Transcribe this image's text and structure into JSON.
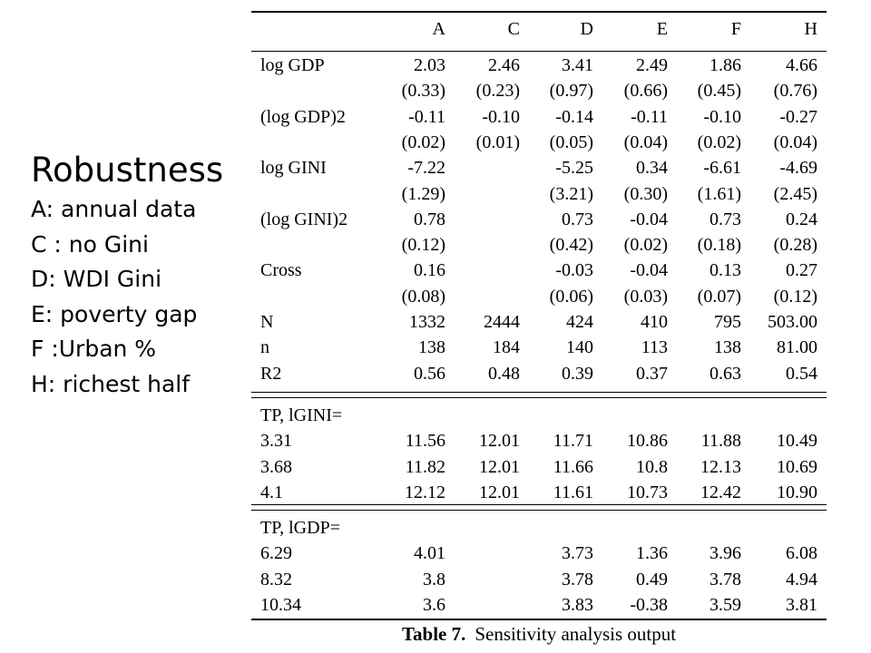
{
  "legend": {
    "title": "Robustness",
    "items": [
      "A: annual data",
      "C : no Gini",
      "D: WDI Gini",
      "E: poverty gap",
      "F :Urban %",
      "H: richest half"
    ]
  },
  "table": {
    "columns": [
      "A",
      "C",
      "D",
      "E",
      "F",
      "H"
    ],
    "sections": [
      {
        "rows": [
          {
            "label": "log GDP",
            "values": [
              "2.03",
              "2.46",
              "3.41",
              "2.49",
              "1.86",
              "4.66"
            ]
          },
          {
            "label": "",
            "values": [
              "(0.33)",
              "(0.23)",
              "(0.97)",
              "(0.66)",
              "(0.45)",
              "(0.76)"
            ]
          },
          {
            "label": "(log GDP)2",
            "values": [
              "-0.11",
              "-0.10",
              "-0.14",
              "-0.11",
              "-0.10",
              "-0.27"
            ]
          },
          {
            "label": "",
            "values": [
              "(0.02)",
              "(0.01)",
              "(0.05)",
              "(0.04)",
              "(0.02)",
              "(0.04)"
            ]
          },
          {
            "label": "log GINI",
            "values": [
              "-7.22",
              "",
              "-5.25",
              "0.34",
              "-6.61",
              "-4.69"
            ]
          },
          {
            "label": "",
            "values": [
              "(1.29)",
              "",
              "(3.21)",
              "(0.30)",
              "(1.61)",
              "(2.45)"
            ]
          },
          {
            "label": "(log GINI)2",
            "values": [
              "0.78",
              "",
              "0.73",
              "-0.04",
              "0.73",
              "0.24"
            ]
          },
          {
            "label": "",
            "values": [
              "(0.12)",
              "",
              "(0.42)",
              "(0.02)",
              "(0.18)",
              "(0.28)"
            ]
          },
          {
            "label": "Cross",
            "values": [
              "0.16",
              "",
              "-0.03",
              "-0.04",
              "0.13",
              "0.27"
            ]
          },
          {
            "label": "",
            "values": [
              "(0.08)",
              "",
              "(0.06)",
              "(0.03)",
              "(0.07)",
              "(0.12)"
            ]
          },
          {
            "label": "N",
            "values": [
              "1332",
              "2444",
              "424",
              "410",
              "795",
              "503.00"
            ]
          },
          {
            "label": "n",
            "values": [
              "138",
              "184",
              "140",
              "113",
              "138",
              "81.00"
            ]
          },
          {
            "label": "R2",
            "values": [
              "0.56",
              "0.48",
              "0.39",
              "0.37",
              "0.63",
              "0.54"
            ]
          }
        ]
      },
      {
        "rows": [
          {
            "label": "TP, lGINI=",
            "values": [
              "",
              "",
              "",
              "",
              "",
              ""
            ]
          },
          {
            "label": "3.31",
            "values": [
              "11.56",
              "12.01",
              "11.71",
              "10.86",
              "11.88",
              "10.49"
            ]
          },
          {
            "label": "3.68",
            "values": [
              "11.82",
              "12.01",
              "11.66",
              "10.8",
              "12.13",
              "10.69"
            ]
          },
          {
            "label": "4.1",
            "values": [
              "12.12",
              "12.01",
              "11.61",
              "10.73",
              "12.42",
              "10.90"
            ]
          }
        ]
      },
      {
        "rows": [
          {
            "label": "TP, lGDP=",
            "values": [
              "",
              "",
              "",
              "",
              "",
              ""
            ]
          },
          {
            "label": "6.29",
            "values": [
              "4.01",
              "",
              "3.73",
              "1.36",
              "3.96",
              "6.08"
            ]
          },
          {
            "label": "8.32",
            "values": [
              "3.8",
              "",
              "3.78",
              "0.49",
              "3.78",
              "4.94"
            ]
          },
          {
            "label": "10.34",
            "values": [
              "3.6",
              "",
              "3.83",
              "-0.38",
              "3.59",
              "3.81"
            ]
          }
        ]
      }
    ]
  },
  "caption": {
    "prefix": "Table 7.",
    "text": "Sensitivity analysis output"
  }
}
